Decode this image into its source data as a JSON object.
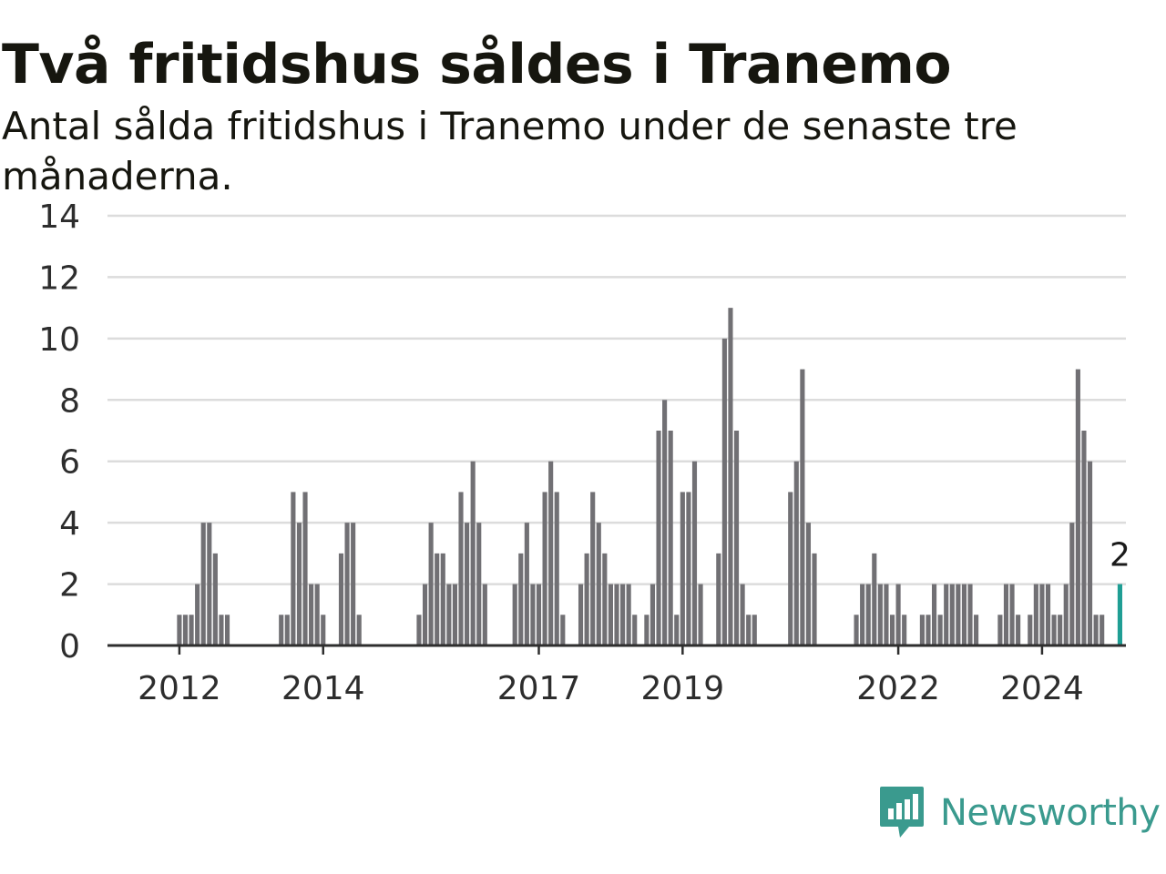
{
  "title": "Två fritidshus såldes i Tranemo",
  "subtitle": "Antal sålda fritidshus i Tranemo under de senaste tre månaderna.",
  "brand": {
    "name": "Newsworthy",
    "color": "#3a9a8e"
  },
  "colors": {
    "bar": "#717074",
    "highlight": "#1f9e94",
    "grid": "#dcdcdc",
    "axis": "#2e2e2e",
    "text": "#2d2d2d"
  },
  "chart_data": {
    "type": "bar",
    "x_start": "2011-01",
    "x_end": "2025-03",
    "ylim": [
      0,
      14
    ],
    "yticks": [
      0,
      2,
      4,
      6,
      8,
      10,
      12,
      14
    ],
    "xticks": [
      {
        "label": "2012",
        "date": "2012-01"
      },
      {
        "label": "2014",
        "date": "2014-01"
      },
      {
        "label": "2017",
        "date": "2017-01"
      },
      {
        "label": "2019",
        "date": "2019-01"
      },
      {
        "label": "2022",
        "date": "2022-01"
      },
      {
        "label": "2024",
        "date": "2024-01"
      }
    ],
    "grid": true,
    "series": [
      {
        "values": [
          {
            "date": "2012-01",
            "value": 1
          },
          {
            "date": "2012-02",
            "value": 1
          },
          {
            "date": "2012-03",
            "value": 1
          },
          {
            "date": "2012-04",
            "value": 2
          },
          {
            "date": "2012-05",
            "value": 4
          },
          {
            "date": "2012-06",
            "value": 4
          },
          {
            "date": "2012-07",
            "value": 3
          },
          {
            "date": "2012-08",
            "value": 1
          },
          {
            "date": "2012-09",
            "value": 1
          },
          {
            "date": "2013-06",
            "value": 1
          },
          {
            "date": "2013-07",
            "value": 1
          },
          {
            "date": "2013-08",
            "value": 5
          },
          {
            "date": "2013-09",
            "value": 4
          },
          {
            "date": "2013-10",
            "value": 5
          },
          {
            "date": "2013-11",
            "value": 2
          },
          {
            "date": "2013-12",
            "value": 2
          },
          {
            "date": "2014-01",
            "value": 1
          },
          {
            "date": "2014-04",
            "value": 3
          },
          {
            "date": "2014-05",
            "value": 4
          },
          {
            "date": "2014-06",
            "value": 4
          },
          {
            "date": "2014-07",
            "value": 1
          },
          {
            "date": "2015-05",
            "value": 1
          },
          {
            "date": "2015-06",
            "value": 2
          },
          {
            "date": "2015-07",
            "value": 4
          },
          {
            "date": "2015-08",
            "value": 3
          },
          {
            "date": "2015-09",
            "value": 3
          },
          {
            "date": "2015-10",
            "value": 2
          },
          {
            "date": "2015-11",
            "value": 2
          },
          {
            "date": "2015-12",
            "value": 5
          },
          {
            "date": "2016-01",
            "value": 4
          },
          {
            "date": "2016-02",
            "value": 6
          },
          {
            "date": "2016-03",
            "value": 4
          },
          {
            "date": "2016-04",
            "value": 2
          },
          {
            "date": "2016-09",
            "value": 2
          },
          {
            "date": "2016-10",
            "value": 3
          },
          {
            "date": "2016-11",
            "value": 4
          },
          {
            "date": "2016-12",
            "value": 2
          },
          {
            "date": "2017-01",
            "value": 2
          },
          {
            "date": "2017-02",
            "value": 5
          },
          {
            "date": "2017-03",
            "value": 6
          },
          {
            "date": "2017-04",
            "value": 5
          },
          {
            "date": "2017-05",
            "value": 1
          },
          {
            "date": "2017-08",
            "value": 2
          },
          {
            "date": "2017-09",
            "value": 3
          },
          {
            "date": "2017-10",
            "value": 5
          },
          {
            "date": "2017-11",
            "value": 4
          },
          {
            "date": "2017-12",
            "value": 3
          },
          {
            "date": "2018-01",
            "value": 2
          },
          {
            "date": "2018-02",
            "value": 2
          },
          {
            "date": "2018-03",
            "value": 2
          },
          {
            "date": "2018-04",
            "value": 2
          },
          {
            "date": "2018-05",
            "value": 1
          },
          {
            "date": "2018-07",
            "value": 1
          },
          {
            "date": "2018-08",
            "value": 2
          },
          {
            "date": "2018-09",
            "value": 7
          },
          {
            "date": "2018-10",
            "value": 8
          },
          {
            "date": "2018-11",
            "value": 7
          },
          {
            "date": "2018-12",
            "value": 1
          },
          {
            "date": "2019-01",
            "value": 5
          },
          {
            "date": "2019-02",
            "value": 5
          },
          {
            "date": "2019-03",
            "value": 6
          },
          {
            "date": "2019-04",
            "value": 2
          },
          {
            "date": "2019-07",
            "value": 3
          },
          {
            "date": "2019-08",
            "value": 10
          },
          {
            "date": "2019-09",
            "value": 11
          },
          {
            "date": "2019-10",
            "value": 7
          },
          {
            "date": "2019-11",
            "value": 2
          },
          {
            "date": "2019-12",
            "value": 1
          },
          {
            "date": "2020-01",
            "value": 1
          },
          {
            "date": "2020-07",
            "value": 5
          },
          {
            "date": "2020-08",
            "value": 6
          },
          {
            "date": "2020-09",
            "value": 9
          },
          {
            "date": "2020-10",
            "value": 4
          },
          {
            "date": "2020-11",
            "value": 3
          },
          {
            "date": "2021-06",
            "value": 1
          },
          {
            "date": "2021-07",
            "value": 2
          },
          {
            "date": "2021-08",
            "value": 2
          },
          {
            "date": "2021-09",
            "value": 3
          },
          {
            "date": "2021-10",
            "value": 2
          },
          {
            "date": "2021-11",
            "value": 2
          },
          {
            "date": "2021-12",
            "value": 1
          },
          {
            "date": "2022-01",
            "value": 2
          },
          {
            "date": "2022-02",
            "value": 1
          },
          {
            "date": "2022-05",
            "value": 1
          },
          {
            "date": "2022-06",
            "value": 1
          },
          {
            "date": "2022-07",
            "value": 2
          },
          {
            "date": "2022-08",
            "value": 1
          },
          {
            "date": "2022-09",
            "value": 2
          },
          {
            "date": "2022-10",
            "value": 2
          },
          {
            "date": "2022-11",
            "value": 2
          },
          {
            "date": "2022-12",
            "value": 2
          },
          {
            "date": "2023-01",
            "value": 2
          },
          {
            "date": "2023-02",
            "value": 1
          },
          {
            "date": "2023-06",
            "value": 1
          },
          {
            "date": "2023-07",
            "value": 2
          },
          {
            "date": "2023-08",
            "value": 2
          },
          {
            "date": "2023-09",
            "value": 1
          },
          {
            "date": "2023-11",
            "value": 1
          },
          {
            "date": "2023-12",
            "value": 2
          },
          {
            "date": "2024-01",
            "value": 2
          },
          {
            "date": "2024-02",
            "value": 2
          },
          {
            "date": "2024-03",
            "value": 1
          },
          {
            "date": "2024-04",
            "value": 1
          },
          {
            "date": "2024-05",
            "value": 2
          },
          {
            "date": "2024-06",
            "value": 4
          },
          {
            "date": "2024-07",
            "value": 9
          },
          {
            "date": "2024-08",
            "value": 7
          },
          {
            "date": "2024-09",
            "value": 6
          },
          {
            "date": "2024-10",
            "value": 1
          },
          {
            "date": "2024-11",
            "value": 1
          },
          {
            "date": "2025-02",
            "value": 2,
            "highlight": true,
            "label": "2"
          }
        ]
      }
    ]
  }
}
